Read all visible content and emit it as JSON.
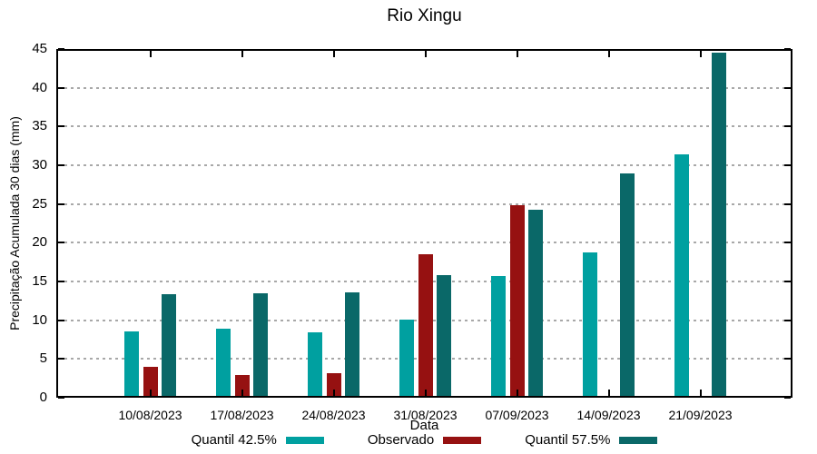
{
  "chart_data": {
    "type": "bar",
    "title": "Rio Xingu",
    "xlabel": "Data",
    "ylabel": "Precipitação Acumulada 30 dias (mm)",
    "ylim": [
      0,
      45
    ],
    "ytick_step": 5,
    "grid": "horizontal-dashed",
    "grid_color": "#a8a8a8",
    "axis_color": "#000000",
    "legend_position": "bottom-center",
    "categories": [
      "10/08/2023",
      "17/08/2023",
      "24/08/2023",
      "31/08/2023",
      "07/09/2023",
      "14/09/2023",
      "21/09/2023"
    ],
    "series": [
      {
        "name": "Quantil 42.5%",
        "color": "#00A0A0",
        "values": [
          8.6,
          8.9,
          8.4,
          10.1,
          15.7,
          18.7,
          31.4
        ]
      },
      {
        "name": "Observado",
        "color": "#961111",
        "values": [
          4.0,
          2.9,
          3.2,
          18.5,
          24.8,
          null,
          null
        ]
      },
      {
        "name": "Quantil 57.5%",
        "color": "#0A6868",
        "values": [
          13.4,
          13.5,
          13.6,
          15.8,
          24.2,
          29.0,
          44.5
        ]
      }
    ]
  }
}
